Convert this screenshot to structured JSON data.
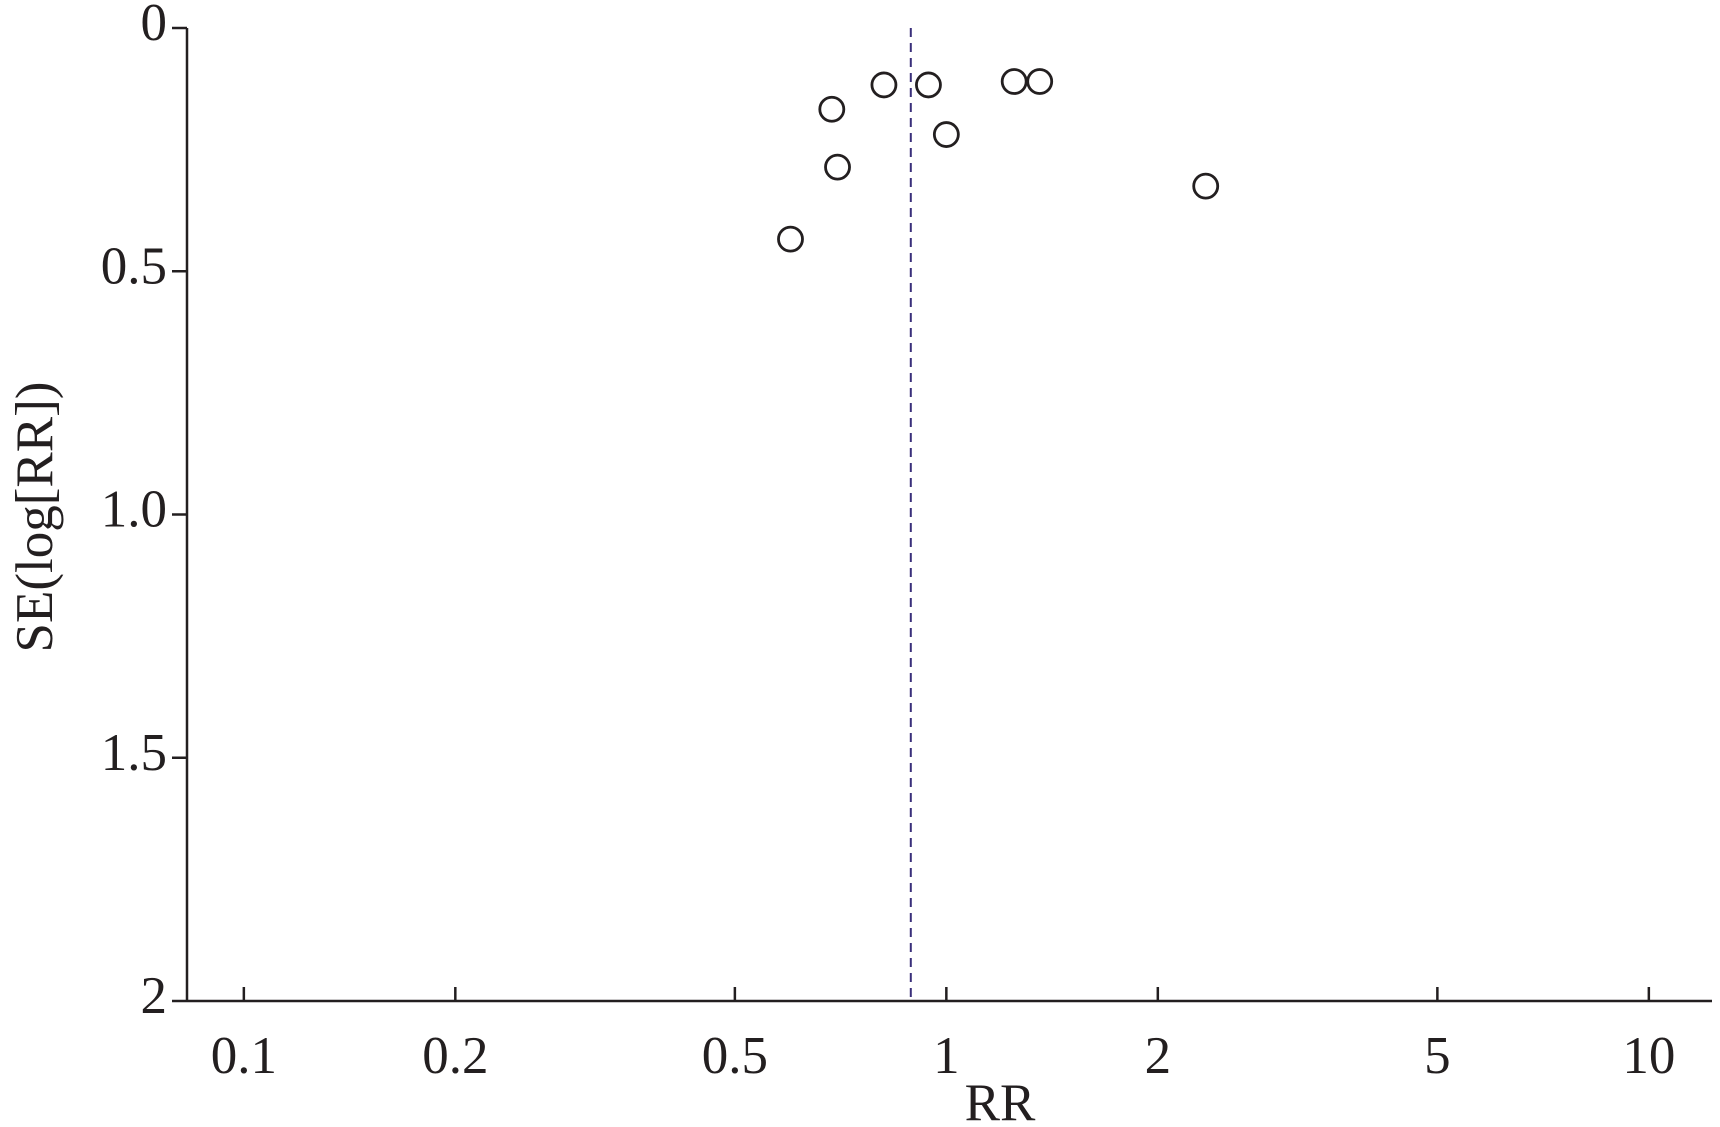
{
  "chart_data": {
    "type": "scatter",
    "x_label": "RR",
    "y_label": "SE(log[RR])",
    "x": [
      0.6,
      0.687,
      0.7,
      0.815,
      0.943,
      1.0,
      1.249,
      1.358,
      2.34
    ],
    "values": [
      0.434,
      0.167,
      0.286,
      0.117,
      0.117,
      0.219,
      0.11,
      0.11,
      0.325
    ],
    "color": "#231f20",
    "x_scale": "log",
    "y_reversed": true,
    "xlim": [
      0.083,
      12.3
    ],
    "xticks": [
      0.1,
      0.2,
      0.5,
      1,
      2,
      5,
      10
    ],
    "ylim": [
      0,
      2
    ],
    "yticks": [
      0,
      0.5,
      {
        "value": 1,
        "label": "1.0"
      },
      1.5,
      2
    ],
    "ref_line": 0.89,
    "ref_line_color": "#3a2f7a"
  }
}
